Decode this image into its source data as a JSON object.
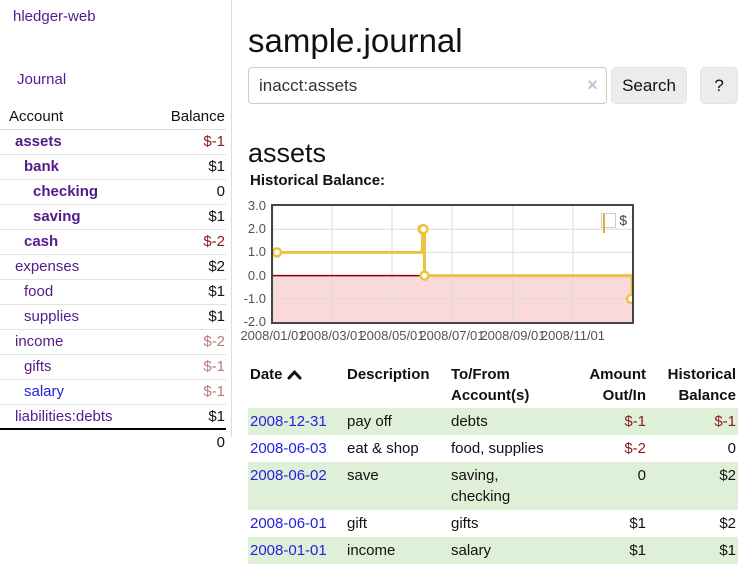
{
  "app": {
    "title": "hledger-web"
  },
  "colors": {
    "link_purple": "#551a8b",
    "link_blue": "#2222dd",
    "negative_strong": "#8b1a1a",
    "negative_muted": "#b97c7c",
    "row_highlight_green": "#dff0d8",
    "chart_line_gold": "#edc240",
    "chart_negative_fill": "#f9d9d9",
    "chart_zero_line": "#8b0000"
  },
  "sidebar": {
    "journal_link": "Journal",
    "accounts_header": {
      "account": "Account",
      "balance": "Balance"
    },
    "accounts": [
      {
        "name": "assets",
        "balance": "$-1",
        "indent": 1,
        "bold": true,
        "negative": true
      },
      {
        "name": "bank",
        "balance": "$1",
        "indent": 2,
        "bold": true,
        "negative": false
      },
      {
        "name": "checking",
        "balance": "0",
        "indent": 3,
        "bold": true,
        "negative": false
      },
      {
        "name": "saving",
        "balance": "$1",
        "indent": 3,
        "bold": true,
        "negative": false
      },
      {
        "name": "cash",
        "balance": "$-2",
        "indent": 2,
        "bold": true,
        "negative": true
      },
      {
        "name": "expenses",
        "balance": "$2",
        "indent": 1,
        "bold": false,
        "negative": false
      },
      {
        "name": "food",
        "balance": "$1",
        "indent": 2,
        "bold": false,
        "negative": false
      },
      {
        "name": "supplies",
        "balance": "$1",
        "indent": 2,
        "bold": false,
        "negative": false
      },
      {
        "name": "income",
        "balance": "$-2",
        "indent": 1,
        "bold": false,
        "negative": true
      },
      {
        "name": "gifts",
        "balance": "$-1",
        "indent": 2,
        "bold": false,
        "negative": true
      },
      {
        "name": "salary",
        "balance": "$-1",
        "indent": 2,
        "bold": false,
        "negative": true,
        "blue": true
      },
      {
        "name": "liabilities:debts",
        "balance": "$1",
        "indent": 1,
        "bold": false,
        "negative": false
      }
    ],
    "total": "0"
  },
  "header": {
    "title": "sample.journal"
  },
  "search": {
    "value": "inacct:assets",
    "clear_icon": "×",
    "button_label": "Search",
    "help_label": "?"
  },
  "account_page": {
    "title": "assets",
    "chart_label": "Historical Balance:"
  },
  "chart_data": {
    "type": "line",
    "steps": true,
    "title": "Historical Balance",
    "xlim": [
      "2008-01-01",
      "2008-12-31"
    ],
    "ylim": [
      -2,
      3
    ],
    "yticks": [
      "3.0",
      "2.0",
      "1.0",
      "0.0",
      "-1.0",
      "-2.0"
    ],
    "ytick_values": [
      3,
      2,
      1,
      0,
      -1,
      -2
    ],
    "xticks": [
      {
        "label": "2008/01/01",
        "date": "2008-01-01"
      },
      {
        "label": "2008/03/01",
        "date": "2008-03-01"
      },
      {
        "label": "2008/05/01",
        "date": "2008-05-01"
      },
      {
        "label": "2008/07/01",
        "date": "2008-07-01"
      },
      {
        "label": "2008/09/01",
        "date": "2008-09-01"
      },
      {
        "label": "2008/11/01",
        "date": "2008-11-01"
      }
    ],
    "series": [
      {
        "name": "$",
        "color": "#edc240",
        "points": [
          [
            "2008-01-01",
            1
          ],
          [
            "2008-06-01",
            2
          ],
          [
            "2008-06-02",
            2
          ],
          [
            "2008-06-03",
            0
          ],
          [
            "2008-12-31",
            -1
          ]
        ]
      }
    ],
    "legend": {
      "label": "$",
      "position": "top-right"
    },
    "grid": true,
    "negative_region": true
  },
  "register": {
    "columns": [
      "Date",
      "Description",
      "To/From Account(s)",
      "Amount Out/In",
      "Historical Balance"
    ],
    "rows": [
      {
        "date": "2008-12-31",
        "description": "pay off",
        "accounts": "debts",
        "amount": "$-1",
        "balance": "$-1",
        "amount_negative": true,
        "balance_negative": true,
        "highlight": true
      },
      {
        "date": "2008-06-03",
        "description": "eat & shop",
        "accounts": "food, supplies",
        "amount": "$-2",
        "balance": "0",
        "amount_negative": true,
        "balance_negative": false,
        "highlight": false
      },
      {
        "date": "2008-06-02",
        "description": "save",
        "accounts": "saving, checking",
        "amount": "0",
        "balance": "$2",
        "amount_negative": false,
        "balance_negative": false,
        "highlight": true
      },
      {
        "date": "2008-06-01",
        "description": "gift",
        "accounts": "gifts",
        "amount": "$1",
        "balance": "$2",
        "amount_negative": false,
        "balance_negative": false,
        "highlight": false
      },
      {
        "date": "2008-01-01",
        "description": "income",
        "accounts": "salary",
        "amount": "$1",
        "balance": "$1",
        "amount_negative": false,
        "balance_negative": false,
        "highlight": true
      }
    ]
  }
}
